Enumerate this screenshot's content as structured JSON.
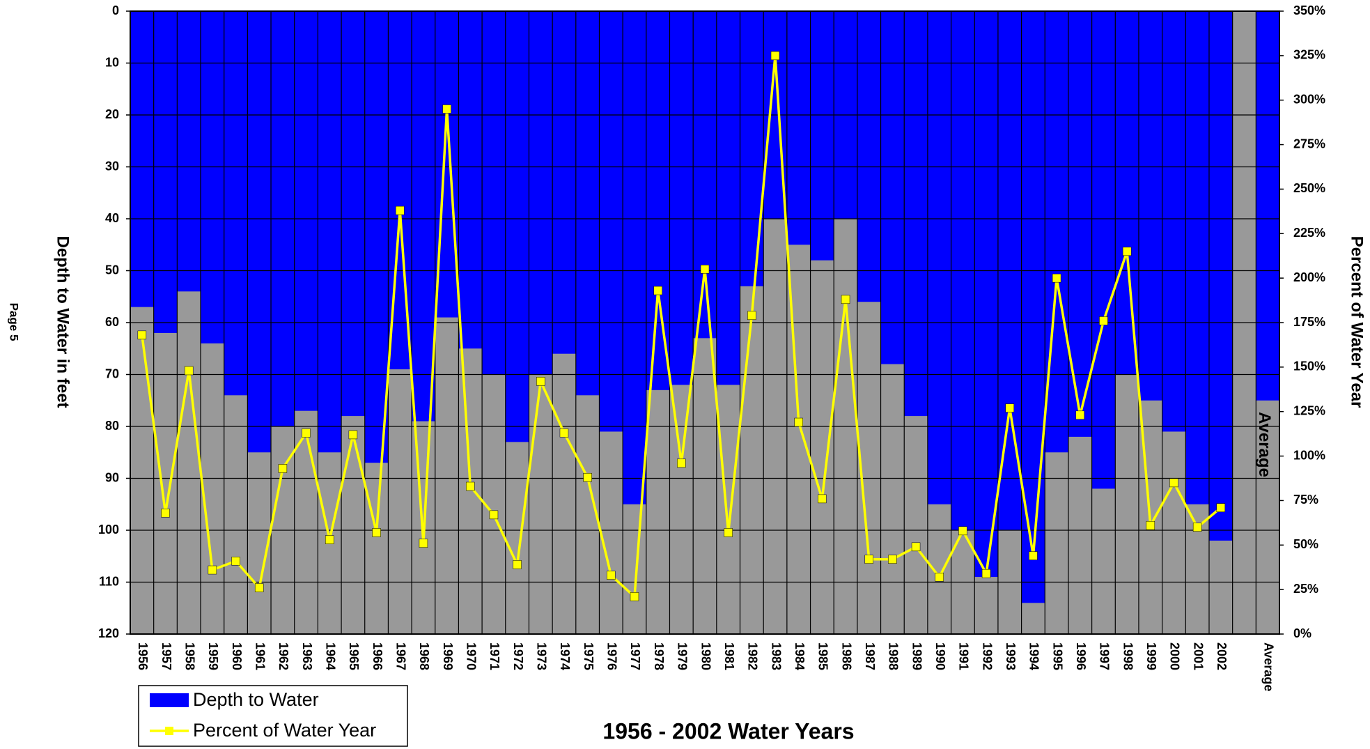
{
  "page": {
    "label": "Page 5"
  },
  "chart_data": {
    "type": "bar-line",
    "x_title": "1956 - 2002 Water Years",
    "y_title": "Depth to Water in feet",
    "y2_title": "Percent of Water Year",
    "annotation": "Average",
    "plot_background": "#999999",
    "categories": [
      "1956",
      "1957",
      "1958",
      "1959",
      "1960",
      "1961",
      "1962",
      "1963",
      "1964",
      "1965",
      "1966",
      "1967",
      "1968",
      "1969",
      "1970",
      "1971",
      "1972",
      "1973",
      "1974",
      "1975",
      "1976",
      "1977",
      "1978",
      "1979",
      "1980",
      "1981",
      "1982",
      "1983",
      "1984",
      "1985",
      "1986",
      "1987",
      "1988",
      "1989",
      "1990",
      "1991",
      "1992",
      "1993",
      "1994",
      "1995",
      "1996",
      "1997",
      "1998",
      "1999",
      "2000",
      "2001",
      "2002",
      null,
      "Average"
    ],
    "series": [
      {
        "name": "Depth to Water",
        "type": "bar",
        "color": "#0000ff",
        "values": [
          57,
          62,
          54,
          64,
          74,
          85,
          80,
          77,
          85,
          78,
          87,
          69,
          79,
          59,
          65,
          70,
          83,
          70,
          66,
          74,
          81,
          95,
          73,
          72,
          63,
          72,
          53,
          40,
          45,
          48,
          40,
          56,
          68,
          78,
          95,
          100,
          109,
          100,
          114,
          85,
          82,
          92,
          70,
          75,
          81,
          95,
          102,
          null,
          75
        ]
      },
      {
        "name": "Percent of Water Year",
        "type": "line",
        "axis": "y2",
        "color": "#ffff00",
        "values": [
          168,
          68,
          148,
          36,
          41,
          26,
          93,
          113,
          53,
          112,
          57,
          238,
          51,
          295,
          83,
          67,
          39,
          142,
          113,
          88,
          33,
          21,
          193,
          96,
          205,
          57,
          179,
          325,
          119,
          76,
          188,
          42,
          42,
          49,
          32,
          58,
          34,
          127,
          44,
          200,
          123,
          176,
          215,
          61,
          85,
          60,
          71,
          null,
          null
        ]
      }
    ],
    "ylim": [
      0,
      120
    ],
    "y_inverted": true,
    "yticks": [
      0,
      10,
      20,
      30,
      40,
      50,
      60,
      70,
      80,
      90,
      100,
      110,
      120
    ],
    "y2lim": [
      0,
      350
    ],
    "y2ticks": [
      {
        "value": 0,
        "label": "0%"
      },
      {
        "value": 25,
        "label": "25%"
      },
      {
        "value": 50,
        "label": "50%"
      },
      {
        "value": 75,
        "label": "75%"
      },
      {
        "value": 100,
        "label": "100%"
      },
      {
        "value": 125,
        "label": "125%"
      },
      {
        "value": 150,
        "label": "150%"
      },
      {
        "value": 175,
        "label": "175%"
      },
      {
        "value": 200,
        "label": "200%"
      },
      {
        "value": 225,
        "label": "225%"
      },
      {
        "value": 250,
        "label": "250%"
      },
      {
        "value": 275,
        "label": "275%"
      },
      {
        "value": 300,
        "label": "300%"
      },
      {
        "value": 325,
        "label": "325%"
      },
      {
        "value": 350,
        "label": "350%"
      }
    ],
    "grid": true
  }
}
